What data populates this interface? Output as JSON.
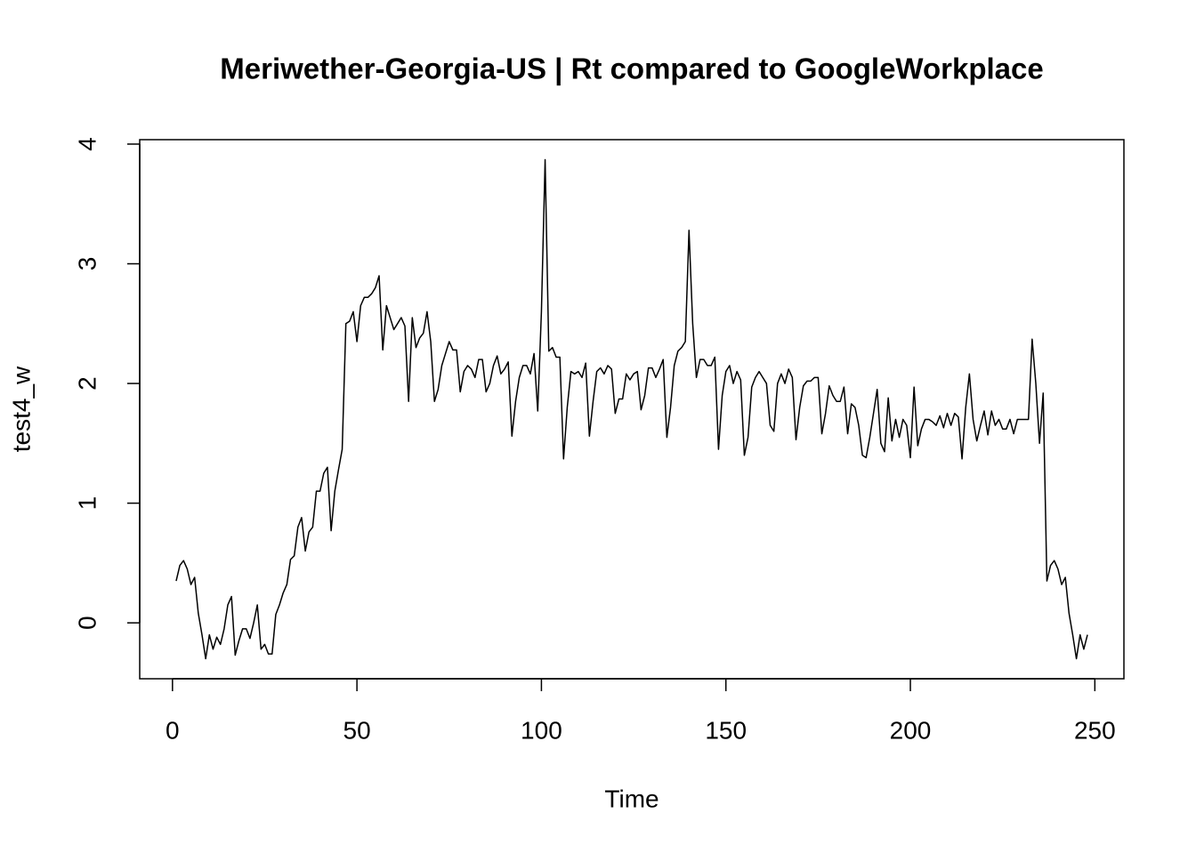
{
  "chart_data": {
    "type": "line",
    "title": "Meriwether-Georgia-US | Rt compared to GoogleWorkplace",
    "xlabel": "Time",
    "ylabel": "test4_w",
    "color": "#000000",
    "x": [
      1,
      2,
      3,
      4,
      5,
      6,
      7,
      8,
      9,
      10,
      11,
      12,
      13,
      14,
      15,
      16,
      17,
      18,
      19,
      20,
      21,
      22,
      23,
      24,
      25,
      26,
      27,
      28,
      29,
      30,
      31,
      32,
      33,
      34,
      35,
      36,
      37,
      38,
      39,
      40,
      41,
      42,
      43,
      44,
      45,
      46,
      47,
      48,
      49,
      50,
      51,
      52,
      53,
      54,
      55,
      56,
      57,
      58,
      59,
      60,
      61,
      62,
      63,
      64,
      65,
      66,
      67,
      68,
      69,
      70,
      71,
      72,
      73,
      74,
      75,
      76,
      77,
      78,
      79,
      80,
      81,
      82,
      83,
      84,
      85,
      86,
      87,
      88,
      89,
      90,
      91,
      92,
      93,
      94,
      95,
      96,
      97,
      98,
      99,
      100,
      101,
      102,
      103,
      104,
      105,
      106,
      107,
      108,
      109,
      110,
      111,
      112,
      113,
      114,
      115,
      116,
      117,
      118,
      119,
      120,
      121,
      122,
      123,
      124,
      125,
      126,
      127,
      128,
      129,
      130,
      131,
      132,
      133,
      134,
      135,
      136,
      137,
      138,
      139,
      140,
      141,
      142,
      143,
      144,
      145,
      146,
      147,
      148,
      149,
      150,
      151,
      152,
      153,
      154,
      155,
      156,
      157,
      158,
      159,
      160,
      161,
      162,
      163,
      164,
      165,
      166,
      167,
      168,
      169,
      170,
      171,
      172,
      173,
      174,
      175,
      176,
      177,
      178,
      179,
      180,
      181,
      182,
      183,
      184,
      185,
      186,
      187,
      188,
      189,
      190,
      191,
      192,
      193,
      194,
      195,
      196,
      197,
      198,
      199,
      200,
      201,
      202,
      203,
      204,
      205,
      206,
      207,
      208,
      209,
      210,
      211,
      212,
      213,
      214,
      215,
      216,
      217,
      218,
      219,
      220,
      221,
      222,
      223,
      224,
      225,
      226,
      227,
      228,
      229,
      230,
      231,
      232,
      233,
      234,
      235,
      236,
      237,
      238,
      239,
      240,
      241,
      242,
      243,
      244,
      245,
      246,
      247,
      248
    ],
    "values": [
      0.35,
      0.48,
      0.52,
      0.45,
      0.32,
      0.38,
      0.08,
      -0.1,
      -0.3,
      -0.1,
      -0.22,
      -0.12,
      -0.18,
      -0.05,
      0.15,
      0.22,
      -0.27,
      -0.15,
      -0.05,
      -0.05,
      -0.13,
      0.0,
      0.15,
      -0.22,
      -0.18,
      -0.26,
      -0.26,
      0.07,
      0.15,
      0.25,
      0.32,
      0.53,
      0.56,
      0.8,
      0.88,
      0.6,
      0.76,
      0.8,
      1.1,
      1.1,
      1.25,
      1.3,
      0.77,
      1.1,
      1.28,
      1.45,
      2.5,
      2.52,
      2.6,
      2.35,
      2.65,
      2.72,
      2.72,
      2.75,
      2.8,
      2.9,
      2.28,
      2.65,
      2.55,
      2.45,
      2.5,
      2.55,
      2.48,
      1.85,
      2.55,
      2.3,
      2.38,
      2.42,
      2.6,
      2.35,
      1.85,
      1.95,
      2.15,
      2.25,
      2.35,
      2.28,
      2.28,
      1.93,
      2.1,
      2.15,
      2.12,
      2.05,
      2.2,
      2.2,
      1.93,
      2.0,
      2.15,
      2.23,
      2.08,
      2.12,
      2.18,
      1.56,
      1.85,
      2.05,
      2.15,
      2.15,
      2.08,
      2.25,
      1.77,
      2.6,
      3.87,
      2.27,
      2.3,
      2.22,
      2.22,
      1.37,
      1.8,
      2.1,
      2.08,
      2.1,
      2.05,
      2.17,
      1.56,
      1.85,
      2.1,
      2.13,
      2.08,
      2.15,
      2.12,
      1.75,
      1.87,
      1.87,
      2.08,
      2.03,
      2.08,
      2.1,
      1.78,
      1.9,
      2.13,
      2.13,
      2.05,
      2.12,
      2.2,
      1.55,
      1.8,
      2.15,
      2.27,
      2.3,
      2.35,
      3.28,
      2.5,
      2.05,
      2.2,
      2.2,
      2.15,
      2.15,
      2.22,
      1.45,
      1.9,
      2.1,
      2.15,
      2.0,
      2.1,
      2.03,
      1.4,
      1.55,
      1.97,
      2.05,
      2.1,
      2.05,
      2.0,
      1.65,
      1.6,
      2.0,
      2.08,
      2.0,
      2.12,
      2.05,
      1.53,
      1.8,
      1.98,
      2.02,
      2.02,
      2.05,
      2.05,
      1.58,
      1.75,
      1.98,
      1.9,
      1.85,
      1.85,
      1.97,
      1.58,
      1.83,
      1.8,
      1.65,
      1.4,
      1.38,
      1.55,
      1.75,
      1.95,
      1.5,
      1.43,
      1.88,
      1.52,
      1.7,
      1.55,
      1.7,
      1.65,
      1.38,
      1.97,
      1.48,
      1.62,
      1.7,
      1.7,
      1.68,
      1.65,
      1.73,
      1.63,
      1.75,
      1.65,
      1.75,
      1.72,
      1.37,
      1.8,
      2.08,
      1.7,
      1.52,
      1.65,
      1.77,
      1.57,
      1.77,
      1.65,
      1.7,
      1.62,
      1.62,
      1.7,
      1.58,
      1.7,
      1.7,
      1.7,
      1.7,
      2.37,
      2.0,
      1.5,
      1.92,
      0.35,
      0.48,
      0.52,
      0.45,
      0.32,
      0.38,
      0.08,
      -0.1,
      -0.3,
      -0.1,
      -0.22,
      -0.1
    ],
    "xlim": [
      -8.88,
      257.88
    ],
    "xticks": [
      0,
      50,
      100,
      150,
      200,
      250
    ],
    "ylim": [
      -0.467,
      4.037
    ],
    "yticks": [
      0,
      1,
      2,
      3,
      4
    ]
  }
}
